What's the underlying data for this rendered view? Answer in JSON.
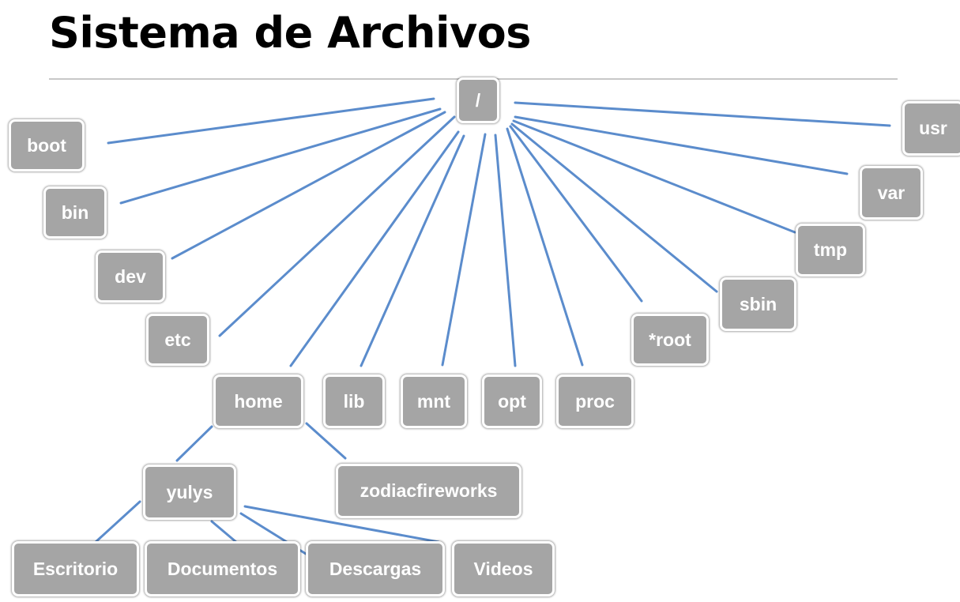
{
  "title": "Sistema de Archivos",
  "edge_color": "#5b8ccc",
  "node_fill": "#a5a5a5",
  "nodes": {
    "root": "/",
    "boot": "boot",
    "bin": "bin",
    "dev": "dev",
    "etc": "etc",
    "home": "home",
    "lib": "lib",
    "mnt": "mnt",
    "opt": "opt",
    "proc": "proc",
    "starroot": "*root",
    "sbin": "sbin",
    "tmp": "tmp",
    "var": "var",
    "usr": "usr",
    "yulys": "yulys",
    "zodiacfireworks": "zodiacfireworks",
    "escritorio": "Escritorio",
    "documentos": "Documentos",
    "descargas": "Descargas",
    "videos": "Videos"
  },
  "edges": [
    [
      "root",
      "boot"
    ],
    [
      "root",
      "bin"
    ],
    [
      "root",
      "dev"
    ],
    [
      "root",
      "etc"
    ],
    [
      "root",
      "home"
    ],
    [
      "root",
      "lib"
    ],
    [
      "root",
      "mnt"
    ],
    [
      "root",
      "opt"
    ],
    [
      "root",
      "proc"
    ],
    [
      "root",
      "starroot"
    ],
    [
      "root",
      "sbin"
    ],
    [
      "root",
      "tmp"
    ],
    [
      "root",
      "var"
    ],
    [
      "root",
      "usr"
    ],
    [
      "home",
      "yulys"
    ],
    [
      "home",
      "zodiacfireworks"
    ],
    [
      "yulys",
      "escritorio"
    ],
    [
      "yulys",
      "documentos"
    ],
    [
      "yulys",
      "descargas"
    ],
    [
      "yulys",
      "videos"
    ]
  ]
}
